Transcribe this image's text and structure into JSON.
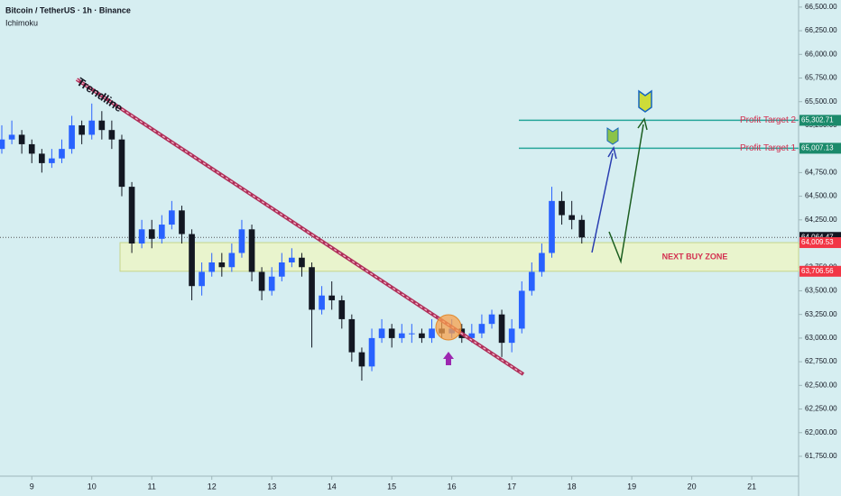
{
  "chart_data": {
    "type": "candlestick",
    "title": "Bitcoin / TetherUS · 1h · Binance",
    "indicator": "Ichimoku",
    "trendline_label": "Trendline",
    "up_color": "#2962ff",
    "down_color": "#131722",
    "xlim": [
      8.47,
      21.78
    ],
    "xticks": [
      9,
      10,
      11,
      12,
      13,
      14,
      15,
      16,
      17,
      18,
      19,
      20,
      21
    ],
    "ylim": [
      61540,
      66575
    ],
    "yticks": [
      {
        "value": 61750,
        "label": "61,750.00"
      },
      {
        "value": 62000,
        "label": "62,000.00"
      },
      {
        "value": 62250,
        "label": "62,250.00"
      },
      {
        "value": 62500,
        "label": "62,500.00"
      },
      {
        "value": 62750,
        "label": "62,750.00"
      },
      {
        "value": 63000,
        "label": "63,000.00"
      },
      {
        "value": 63250,
        "label": "63,250.00"
      },
      {
        "value": 63500,
        "label": "63,500.00"
      },
      {
        "value": 63750,
        "label": "63,750.00"
      },
      {
        "value": 64000,
        "label": "64,000.00"
      },
      {
        "value": 64250,
        "label": "64,250.00"
      },
      {
        "value": 64500,
        "label": "64,500.00"
      },
      {
        "value": 64750,
        "label": "64,750.00"
      },
      {
        "value": 65000,
        "label": "65,000.00"
      },
      {
        "value": 65250,
        "label": "65,250.00"
      },
      {
        "value": 65500,
        "label": "65,500.00"
      },
      {
        "value": 65750,
        "label": "65,750.00"
      },
      {
        "value": 66000,
        "label": "66,000.00"
      },
      {
        "value": 66250,
        "label": "66,250.00"
      },
      {
        "value": 66500,
        "label": "66,500.00"
      }
    ],
    "last_price": {
      "value": 64064.47,
      "label": "64,064.47"
    },
    "buy_zone": {
      "name": "NEXT BUY ZONE",
      "top": {
        "value": 64009.53,
        "label": "64,009.53"
      },
      "bottom": {
        "value": 63706.56,
        "label": "63,706.56"
      }
    },
    "targets": [
      {
        "name": "Profit Target 1",
        "value": 65007.13,
        "label": "65,007.13"
      },
      {
        "name": "Profit Target 2",
        "value": 65302.71,
        "label": "65,302.71"
      }
    ],
    "x": [
      8.5,
      8.667,
      8.833,
      9,
      9.167,
      9.333,
      9.5,
      9.667,
      9.833,
      10,
      10.167,
      10.333,
      10.5,
      10.667,
      10.833,
      11,
      11.167,
      11.333,
      11.5,
      11.667,
      11.833,
      12,
      12.167,
      12.333,
      12.5,
      12.667,
      12.833,
      13,
      13.167,
      13.333,
      13.5,
      13.667,
      13.833,
      14,
      14.167,
      14.333,
      14.5,
      14.667,
      14.833,
      15,
      15.167,
      15.333,
      15.5,
      15.667,
      15.833,
      16,
      16.167,
      16.333,
      16.5,
      16.667,
      16.833,
      17,
      17.167,
      17.333,
      17.5,
      17.667,
      17.833,
      18,
      18.167
    ],
    "open": [
      65000,
      65100,
      65150,
      65050,
      64950,
      64850,
      64900,
      65000,
      65250,
      65150,
      65300,
      65200,
      65100,
      64600,
      64000,
      64150,
      64050,
      64200,
      64350,
      64100,
      63550,
      63700,
      63800,
      63750,
      63900,
      64150,
      63700,
      63500,
      63650,
      63800,
      63850,
      63750,
      63300,
      63450,
      63400,
      63200,
      62850,
      62700,
      63000,
      63100,
      63000,
      63050,
      63050,
      63000,
      63100,
      63050,
      63100,
      63000,
      63050,
      63150,
      63250,
      62950,
      63100,
      63500,
      63700,
      63900,
      64450,
      64300,
      64250
    ],
    "high": [
      65250,
      65300,
      65200,
      65100,
      65000,
      65000,
      65100,
      65350,
      65300,
      65480,
      65400,
      65300,
      65150,
      64650,
      64250,
      64250,
      64300,
      64450,
      64400,
      64150,
      63800,
      63900,
      63900,
      64000,
      64250,
      64200,
      63750,
      63750,
      63900,
      63950,
      63900,
      63800,
      63550,
      63600,
      63450,
      63250,
      62900,
      63100,
      63200,
      63150,
      63150,
      63150,
      63100,
      63200,
      63200,
      63200,
      63150,
      63150,
      63250,
      63300,
      63300,
      63200,
      63600,
      63800,
      64000,
      64600,
      64550,
      64450,
      64300
    ],
    "low": [
      64950,
      65050,
      64950,
      64850,
      64750,
      64800,
      64850,
      64950,
      65050,
      65100,
      65100,
      65000,
      64500,
      63900,
      63950,
      63950,
      64000,
      64150,
      64000,
      63400,
      63450,
      63650,
      63650,
      63700,
      63850,
      63600,
      63400,
      63450,
      63600,
      63750,
      63650,
      62900,
      63250,
      63300,
      63100,
      62750,
      62550,
      62650,
      62950,
      62900,
      62950,
      62950,
      62950,
      62950,
      63000,
      63000,
      62950,
      62950,
      63000,
      63100,
      62800,
      62850,
      63050,
      63450,
      63650,
      63850,
      64200,
      64150,
      64000
    ],
    "close": [
      65100,
      65150,
      65050,
      64950,
      64850,
      64900,
      65000,
      65250,
      65150,
      65300,
      65200,
      65100,
      64600,
      64000,
      64150,
      64050,
      64200,
      64350,
      64100,
      63550,
      63700,
      63800,
      63750,
      63900,
      64150,
      63700,
      63500,
      63650,
      63800,
      63850,
      63750,
      63300,
      63450,
      63400,
      63200,
      62850,
      62700,
      63000,
      63100,
      63000,
      63050,
      63050,
      63000,
      63100,
      63050,
      63100,
      63000,
      63050,
      63150,
      63250,
      62950,
      63100,
      63500,
      63700,
      63900,
      64450,
      64300,
      64250,
      64064.47
    ]
  }
}
